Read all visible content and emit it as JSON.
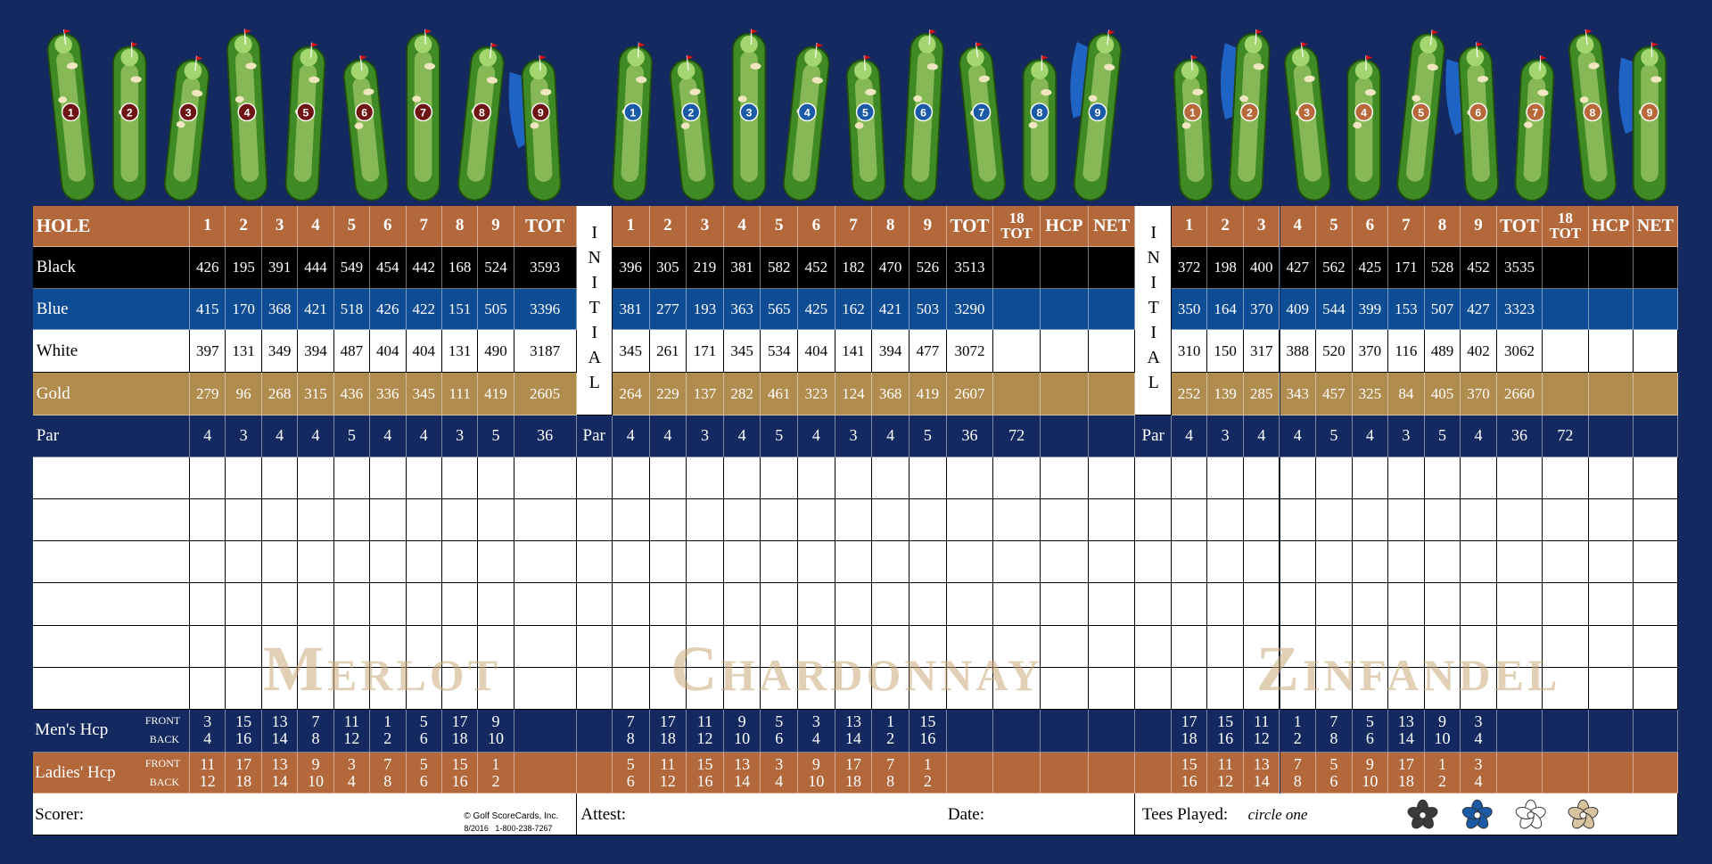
{
  "holes": [
    1,
    2,
    3,
    4,
    5,
    6,
    7,
    8,
    9
  ],
  "labels": {
    "hole": "HOLE",
    "tot": "TOT",
    "tot18": "18 TOT",
    "hcp": "HCP",
    "net": "NET",
    "initial": "INITIAL",
    "par": "Par",
    "tees": {
      "black": "Black",
      "blue": "Blue",
      "white": "White",
      "gold": "Gold"
    },
    "mens": "Men's Hcp",
    "ladies": "Ladies' Hcp",
    "front": "FRONT",
    "back": "BACK"
  },
  "courses": [
    {
      "name": "Merlot",
      "yardage": {
        "black": [
          426,
          195,
          391,
          444,
          549,
          454,
          442,
          168,
          524
        ],
        "blue": [
          415,
          170,
          368,
          421,
          518,
          426,
          422,
          151,
          505
        ],
        "white": [
          397,
          131,
          349,
          394,
          487,
          404,
          404,
          131,
          490
        ],
        "gold": [
          279,
          96,
          268,
          315,
          436,
          336,
          345,
          111,
          419
        ]
      },
      "par": [
        4,
        3,
        4,
        4,
        5,
        4,
        4,
        3,
        5
      ],
      "totals": {
        "black": 3593,
        "blue": 3396,
        "white": 3187,
        "gold": 2605,
        "par": 36
      },
      "mens": {
        "front": [
          3,
          15,
          13,
          7,
          11,
          1,
          5,
          17,
          9
        ],
        "back": [
          4,
          16,
          14,
          8,
          12,
          2,
          6,
          18,
          10
        ]
      },
      "ladies": {
        "front": [
          11,
          17,
          13,
          9,
          3,
          7,
          5,
          15,
          1
        ],
        "back": [
          12,
          18,
          14,
          10,
          4,
          8,
          6,
          16,
          2
        ]
      }
    },
    {
      "name": "Chardonnay",
      "yardage": {
        "black": [
          396,
          305,
          219,
          381,
          582,
          452,
          182,
          470,
          526
        ],
        "blue": [
          381,
          277,
          193,
          363,
          565,
          425,
          162,
          421,
          503
        ],
        "white": [
          345,
          261,
          171,
          345,
          534,
          404,
          141,
          394,
          477
        ],
        "gold": [
          264,
          229,
          137,
          282,
          461,
          323,
          124,
          368,
          419
        ]
      },
      "par": [
        4,
        4,
        3,
        4,
        5,
        4,
        3,
        4,
        5
      ],
      "totals": {
        "black": 3513,
        "blue": 3290,
        "white": 3072,
        "gold": 2607,
        "par": 36
      },
      "par18": 72,
      "mens": {
        "front": [
          7,
          17,
          11,
          9,
          5,
          3,
          13,
          1,
          15
        ],
        "back": [
          8,
          18,
          12,
          10,
          6,
          4,
          14,
          2,
          16
        ]
      },
      "ladies": {
        "front": [
          5,
          11,
          15,
          13,
          3,
          9,
          17,
          7,
          1
        ],
        "back": [
          6,
          12,
          16,
          14,
          4,
          10,
          18,
          8,
          2
        ]
      }
    },
    {
      "name": "Zinfandel",
      "yardage": {
        "black": [
          372,
          198,
          400,
          427,
          562,
          425,
          171,
          528,
          452
        ],
        "blue": [
          350,
          164,
          370,
          409,
          544,
          399,
          153,
          507,
          427
        ],
        "white": [
          310,
          150,
          317,
          388,
          520,
          370,
          116,
          489,
          402
        ],
        "gold": [
          252,
          139,
          285,
          343,
          457,
          325,
          84,
          405,
          370
        ]
      },
      "par": [
        4,
        3,
        4,
        4,
        5,
        4,
        3,
        5,
        4
      ],
      "totals": {
        "black": 3535,
        "blue": 3323,
        "white": 3062,
        "gold": 2660,
        "par": 36
      },
      "par18": 72,
      "mens": {
        "front": [
          17,
          15,
          11,
          1,
          7,
          5,
          13,
          9,
          3
        ],
        "back": [
          18,
          16,
          12,
          2,
          8,
          6,
          14,
          10,
          4
        ]
      },
      "ladies": {
        "front": [
          15,
          11,
          13,
          7,
          5,
          9,
          17,
          1,
          3
        ],
        "back": [
          16,
          12,
          14,
          8,
          6,
          10,
          18,
          2,
          4
        ]
      }
    }
  ],
  "footer": {
    "scorer": "Scorer:",
    "attest": "Attest:",
    "date": "Date:",
    "tees_played": "Tees Played:",
    "circle_one": "circle one",
    "copyright": "© Golf ScoreCards, Inc.",
    "print_info": "8/2016   1-800-238-7267"
  }
}
